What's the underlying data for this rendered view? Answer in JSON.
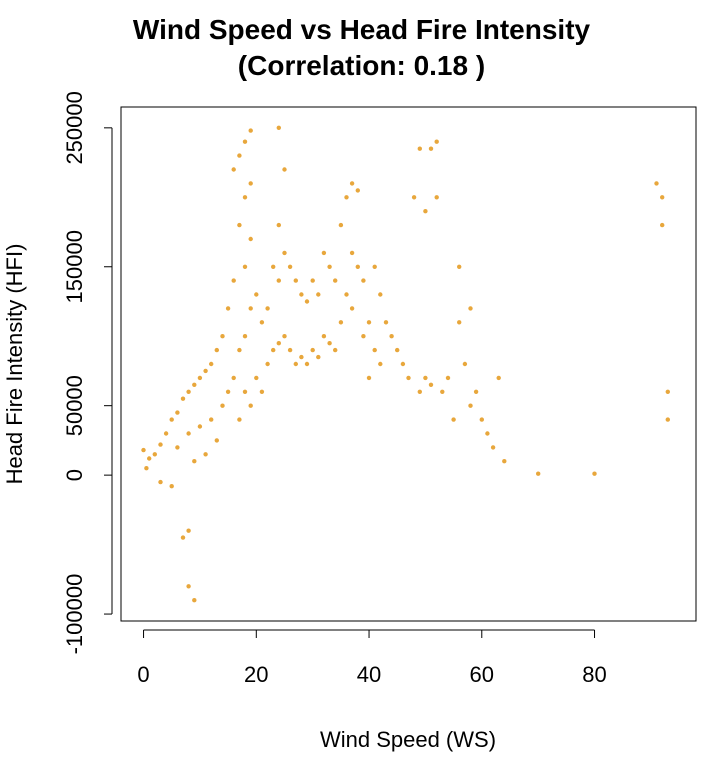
{
  "chart_data": {
    "type": "scatter",
    "title": "Wind Speed vs Head Fire Intensity",
    "subtitle": "(Correlation: 0.18 )",
    "xlabel": "Wind Speed (WS)",
    "ylabel": "Head Fire Intensity (HFI)",
    "xlim": [
      -4,
      98
    ],
    "ylim": [
      -105000,
      265000
    ],
    "x_ticks": [
      0,
      20,
      40,
      60,
      80
    ],
    "y_ticks": [
      -100000,
      0,
      50000,
      150000,
      250000
    ],
    "x_tick_labels": [
      "0",
      "20",
      "40",
      "60",
      "80"
    ],
    "y_tick_labels": [
      "-100000",
      "0",
      "50000",
      "150000",
      "250000"
    ],
    "grid": false,
    "legend": "none",
    "point_color": "#E8A73C",
    "series": [
      {
        "x": [
          0,
          0.5,
          1,
          2,
          3,
          3,
          4,
          5,
          5,
          6,
          6,
          7,
          7,
          8,
          8,
          8,
          8,
          9,
          9,
          9,
          10,
          10,
          11,
          11,
          12,
          12,
          13,
          13,
          14,
          14,
          15,
          15,
          16,
          16,
          16,
          17,
          17,
          17,
          17,
          18,
          18,
          18,
          18,
          18,
          19,
          19,
          19,
          19,
          19,
          20,
          20,
          21,
          21,
          22,
          22,
          23,
          23,
          24,
          24,
          24,
          24,
          25,
          25,
          25,
          26,
          26,
          27,
          27,
          28,
          28,
          29,
          29,
          30,
          30,
          31,
          31,
          32,
          32,
          33,
          33,
          34,
          34,
          35,
          35,
          36,
          36,
          37,
          37,
          37,
          38,
          38,
          39,
          39,
          40,
          40,
          41,
          41,
          42,
          42,
          43,
          44,
          45,
          46,
          47,
          48,
          49,
          49,
          50,
          50,
          51,
          51,
          52,
          52,
          53,
          54,
          55,
          56,
          56,
          57,
          58,
          58,
          59,
          60,
          61,
          62,
          63,
          64,
          70,
          80,
          91,
          92,
          92,
          93,
          93
        ],
        "y": [
          18000,
          5000,
          12000,
          15000,
          22000,
          -5000,
          30000,
          40000,
          -8000,
          45000,
          20000,
          55000,
          -45000,
          60000,
          -80000,
          30000,
          -40000,
          -90000,
          65000,
          10000,
          70000,
          35000,
          75000,
          15000,
          80000,
          40000,
          90000,
          25000,
          100000,
          50000,
          120000,
          60000,
          140000,
          220000,
          70000,
          180000,
          230000,
          90000,
          40000,
          240000,
          200000,
          150000,
          100000,
          60000,
          248000,
          210000,
          170000,
          120000,
          50000,
          130000,
          70000,
          110000,
          60000,
          120000,
          80000,
          150000,
          90000,
          250000,
          180000,
          140000,
          95000,
          220000,
          160000,
          100000,
          150000,
          90000,
          140000,
          80000,
          130000,
          85000,
          125000,
          80000,
          140000,
          90000,
          130000,
          85000,
          160000,
          100000,
          150000,
          95000,
          140000,
          90000,
          180000,
          110000,
          200000,
          130000,
          210000,
          160000,
          120000,
          205000,
          150000,
          140000,
          100000,
          110000,
          70000,
          150000,
          90000,
          130000,
          80000,
          110000,
          100000,
          90000,
          80000,
          70000,
          200000,
          235000,
          60000,
          190000,
          70000,
          235000,
          65000,
          240000,
          200000,
          60000,
          70000,
          40000,
          150000,
          110000,
          80000,
          50000,
          120000,
          60000,
          40000,
          30000,
          20000,
          70000,
          10000,
          1000,
          1000,
          210000,
          200000,
          180000,
          60000,
          40000
        ]
      }
    ]
  }
}
